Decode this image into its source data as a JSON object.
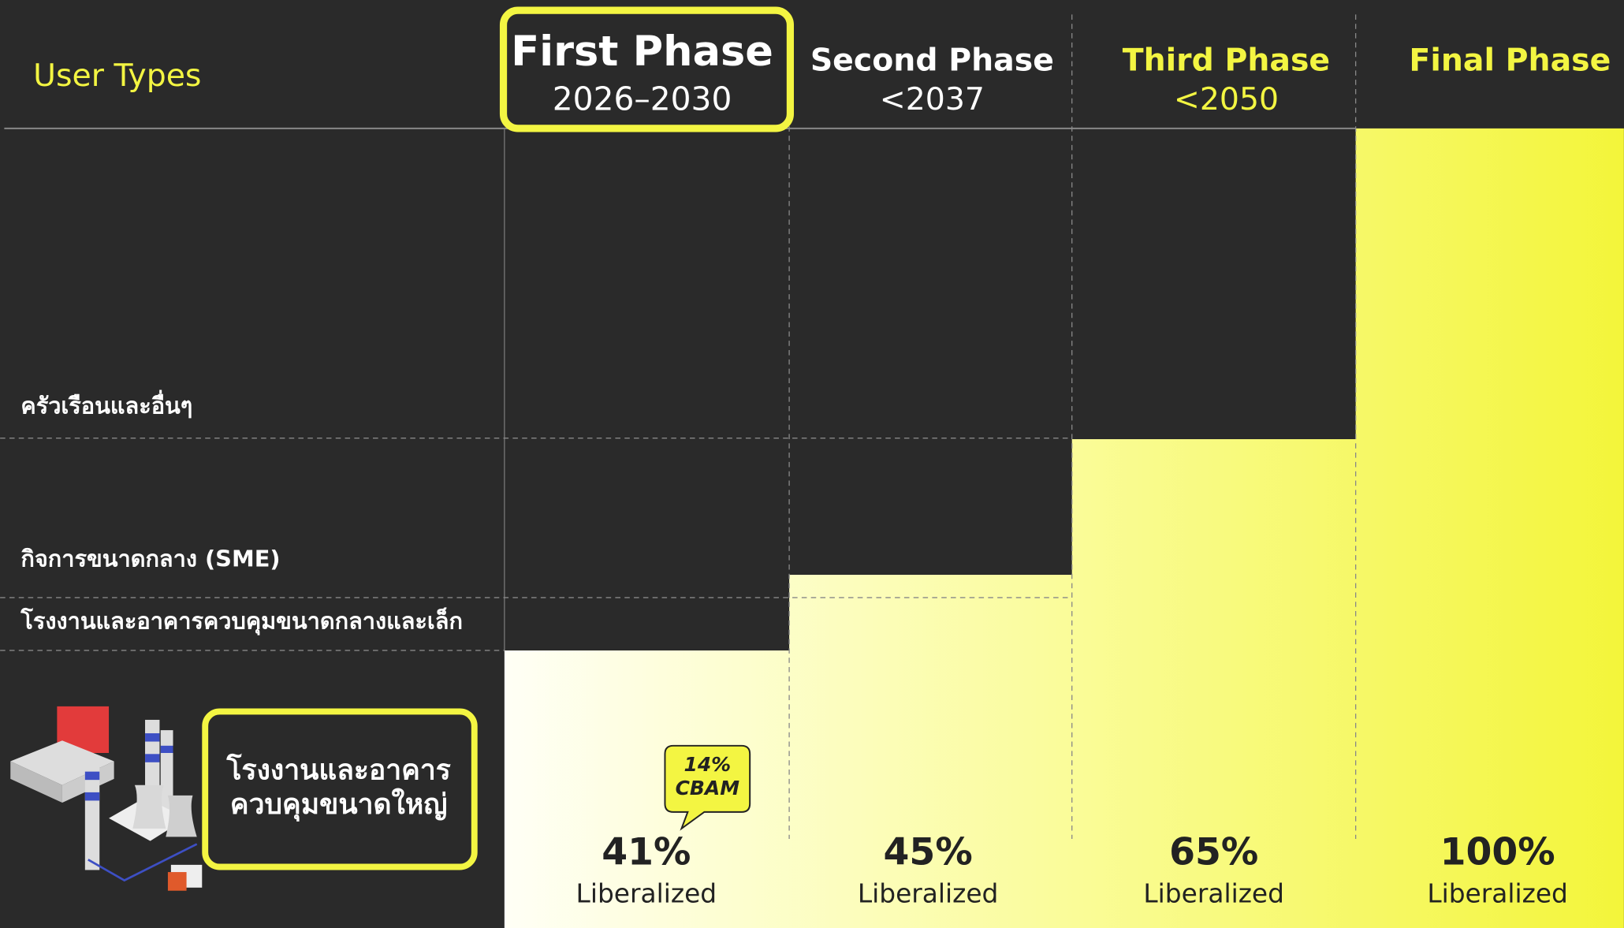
{
  "header": {
    "user_types": "User Types"
  },
  "phases": [
    {
      "name": "First Phase",
      "period": "2026–2030",
      "percent": "41%",
      "status": "Liberalized"
    },
    {
      "name": "Second Phase",
      "period": "<2037",
      "percent": "45%",
      "status": "Liberalized"
    },
    {
      "name": "Third Phase",
      "period": "<2050",
      "percent": "65%",
      "status": "Liberalized"
    },
    {
      "name": "Final Phase",
      "percent": "100%",
      "status": "Liberalized"
    }
  ],
  "user_types": [
    "ครัวเรือนและอื่นๆ",
    "กิจการขนาดกลาง (SME)",
    "โรงงานและอาคารควบคุมขนาดกลางและเล็ก",
    [
      "โรงงานและอาคาร",
      "ควบคุมขนาดใหญ่"
    ]
  ],
  "callout": [
    "14%",
    "CBAM"
  ]
}
